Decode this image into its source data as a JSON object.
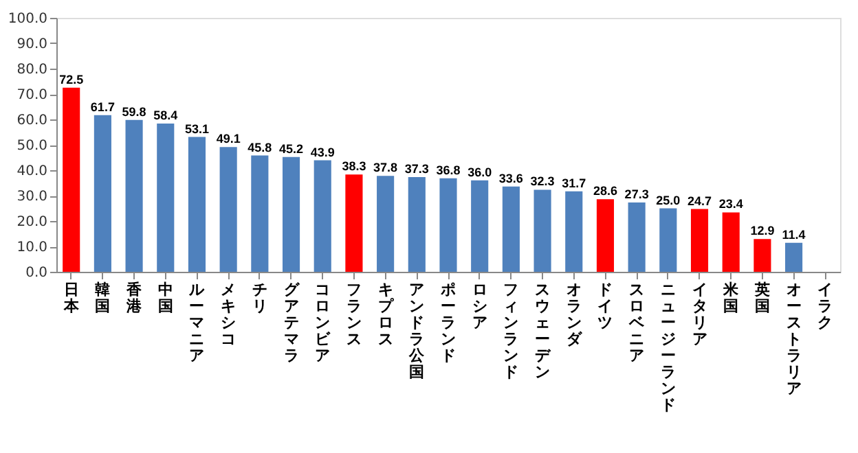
{
  "chart_data": {
    "type": "bar",
    "categories": [
      "日本",
      "韓国",
      "香港",
      "中国",
      "ルーマニア",
      "メキシコ",
      "チリ",
      "グアテマラ",
      "コロンビア",
      "フランス",
      "キプロス",
      "アンドラ公国",
      "ポーランド",
      "ロシア",
      "フィンランド",
      "スウェーデン",
      "オランダ",
      "ドイツ",
      "スロベニア",
      "ニュージーランド",
      "イタリア",
      "米国",
      "英国",
      "オーストラリア",
      "イラク"
    ],
    "values": [
      72.5,
      61.7,
      59.8,
      58.4,
      53.1,
      49.1,
      45.8,
      45.2,
      43.9,
      38.3,
      37.8,
      37.3,
      36.8,
      36.0,
      33.6,
      32.3,
      31.7,
      28.6,
      27.3,
      25.0,
      24.7,
      23.4,
      12.9,
      11.4,
      null
    ],
    "colors": [
      "#ff0000",
      "#4f81bd",
      "#4f81bd",
      "#4f81bd",
      "#4f81bd",
      "#4f81bd",
      "#4f81bd",
      "#4f81bd",
      "#4f81bd",
      "#ff0000",
      "#4f81bd",
      "#4f81bd",
      "#4f81bd",
      "#4f81bd",
      "#4f81bd",
      "#4f81bd",
      "#4f81bd",
      "#ff0000",
      "#4f81bd",
      "#4f81bd",
      "#ff0000",
      "#ff0000",
      "#ff0000",
      "#4f81bd",
      "#4f81bd"
    ],
    "ylim": [
      0,
      100
    ],
    "yticks": [
      {
        "value": 0,
        "label": "0.0"
      },
      {
        "value": 10,
        "label": "10.0"
      },
      {
        "value": 20,
        "label": "20.0"
      },
      {
        "value": 30,
        "label": "30.0"
      },
      {
        "value": 40,
        "label": "40.0"
      },
      {
        "value": 50,
        "label": "50.0"
      },
      {
        "value": 60,
        "label": "60.0"
      },
      {
        "value": 70,
        "label": "70.0"
      },
      {
        "value": 80,
        "label": "80.0"
      },
      {
        "value": 90,
        "label": "90.0"
      },
      {
        "value": 100,
        "label": "100.0"
      }
    ],
    "value_labels": [
      "72.5",
      "61.7",
      "59.8",
      "58.4",
      "53.1",
      "49.1",
      "45.8",
      "45.2",
      "43.9",
      "38.3",
      "37.8",
      "37.3",
      "36.8",
      "36.0",
      "33.6",
      "32.3",
      "31.7",
      "28.6",
      "27.3",
      "25.0",
      "24.7",
      "23.4",
      "12.9",
      "11.4",
      null
    ],
    "grid": false
  }
}
